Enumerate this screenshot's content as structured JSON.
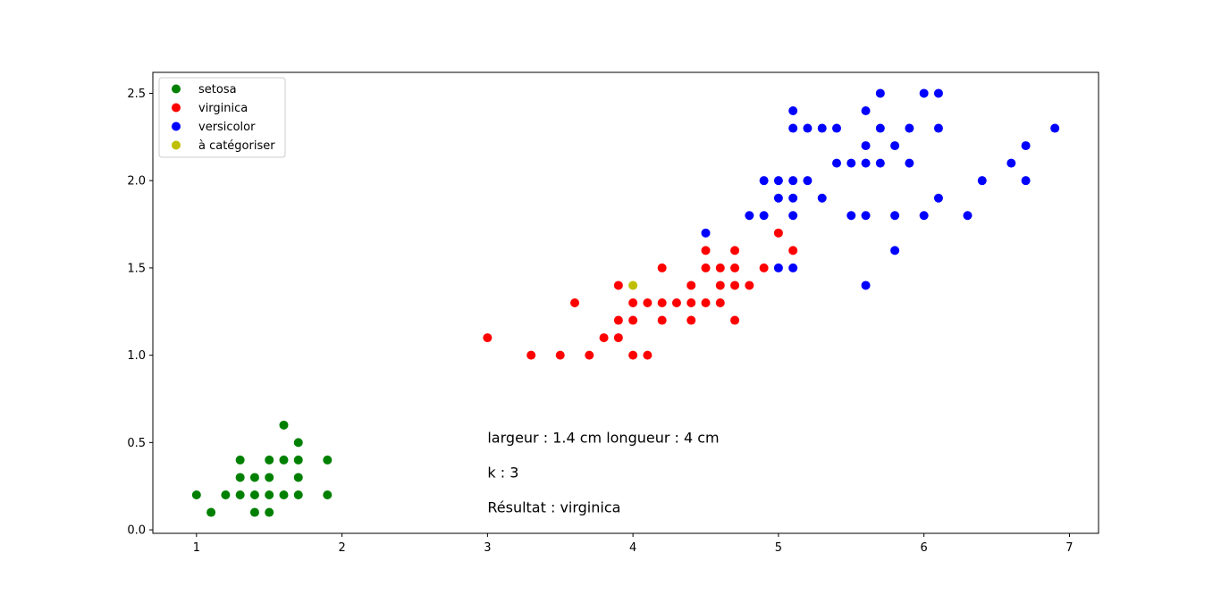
{
  "colors": {
    "setosa": "#008000",
    "virginica": "#ff0000",
    "versicolor": "#0000ff",
    "query": "#bfbf00"
  },
  "chart_data": {
    "type": "scatter",
    "xlim": [
      0.7,
      7.2
    ],
    "ylim": [
      -0.02,
      2.62
    ],
    "xticks": [
      1,
      2,
      3,
      4,
      5,
      6,
      7
    ],
    "yticks": [
      0.0,
      0.5,
      1.0,
      1.5,
      2.0,
      2.5
    ],
    "xtick_labels": [
      "1",
      "2",
      "3",
      "4",
      "5",
      "6",
      "7"
    ],
    "ytick_labels": [
      "0.0",
      "0.5",
      "1.0",
      "1.5",
      "2.0",
      "2.5"
    ],
    "grid": false,
    "legend_position": "top-left",
    "series": [
      {
        "name": "setosa",
        "color": "#008000",
        "points": [
          [
            1.0,
            0.2
          ],
          [
            1.1,
            0.1
          ],
          [
            1.2,
            0.2
          ],
          [
            1.3,
            0.2
          ],
          [
            1.3,
            0.3
          ],
          [
            1.3,
            0.4
          ],
          [
            1.4,
            0.1
          ],
          [
            1.4,
            0.2
          ],
          [
            1.4,
            0.3
          ],
          [
            1.5,
            0.1
          ],
          [
            1.5,
            0.2
          ],
          [
            1.5,
            0.3
          ],
          [
            1.5,
            0.4
          ],
          [
            1.6,
            0.2
          ],
          [
            1.6,
            0.4
          ],
          [
            1.6,
            0.6
          ],
          [
            1.7,
            0.2
          ],
          [
            1.7,
            0.3
          ],
          [
            1.7,
            0.4
          ],
          [
            1.7,
            0.5
          ],
          [
            1.9,
            0.2
          ],
          [
            1.9,
            0.4
          ]
        ]
      },
      {
        "name": "virginica",
        "color": "#ff0000",
        "points": [
          [
            3.0,
            1.1
          ],
          [
            3.3,
            1.0
          ],
          [
            3.5,
            1.0
          ],
          [
            3.6,
            1.3
          ],
          [
            3.7,
            1.0
          ],
          [
            3.8,
            1.1
          ],
          [
            3.9,
            1.1
          ],
          [
            3.9,
            1.2
          ],
          [
            3.9,
            1.4
          ],
          [
            4.0,
            1.0
          ],
          [
            4.0,
            1.2
          ],
          [
            4.0,
            1.3
          ],
          [
            4.1,
            1.0
          ],
          [
            4.1,
            1.3
          ],
          [
            4.2,
            1.2
          ],
          [
            4.2,
            1.3
          ],
          [
            4.2,
            1.5
          ],
          [
            4.3,
            1.3
          ],
          [
            4.4,
            1.2
          ],
          [
            4.4,
            1.3
          ],
          [
            4.4,
            1.4
          ],
          [
            4.5,
            1.3
          ],
          [
            4.5,
            1.5
          ],
          [
            4.5,
            1.6
          ],
          [
            4.6,
            1.3
          ],
          [
            4.6,
            1.4
          ],
          [
            4.6,
            1.5
          ],
          [
            4.7,
            1.2
          ],
          [
            4.7,
            1.4
          ],
          [
            4.7,
            1.5
          ],
          [
            4.7,
            1.6
          ],
          [
            4.8,
            1.4
          ],
          [
            4.9,
            1.5
          ],
          [
            5.0,
            1.7
          ],
          [
            5.1,
            1.6
          ]
        ]
      },
      {
        "name": "versicolor",
        "color": "#0000ff",
        "points": [
          [
            4.5,
            1.7
          ],
          [
            4.8,
            1.8
          ],
          [
            4.9,
            1.8
          ],
          [
            4.9,
            2.0
          ],
          [
            5.0,
            1.5
          ],
          [
            5.0,
            1.9
          ],
          [
            5.0,
            2.0
          ],
          [
            5.1,
            1.5
          ],
          [
            5.1,
            1.8
          ],
          [
            5.1,
            1.9
          ],
          [
            5.1,
            2.0
          ],
          [
            5.1,
            2.3
          ],
          [
            5.1,
            2.4
          ],
          [
            5.2,
            2.0
          ],
          [
            5.2,
            2.3
          ],
          [
            5.3,
            1.9
          ],
          [
            5.3,
            2.3
          ],
          [
            5.4,
            2.1
          ],
          [
            5.4,
            2.3
          ],
          [
            5.5,
            1.8
          ],
          [
            5.5,
            2.1
          ],
          [
            5.6,
            1.4
          ],
          [
            5.6,
            1.8
          ],
          [
            5.6,
            2.1
          ],
          [
            5.6,
            2.2
          ],
          [
            5.6,
            2.4
          ],
          [
            5.7,
            2.1
          ],
          [
            5.7,
            2.3
          ],
          [
            5.7,
            2.5
          ],
          [
            5.8,
            1.6
          ],
          [
            5.8,
            1.8
          ],
          [
            5.8,
            2.2
          ],
          [
            5.9,
            2.1
          ],
          [
            5.9,
            2.3
          ],
          [
            6.0,
            1.8
          ],
          [
            6.0,
            2.5
          ],
          [
            6.1,
            1.9
          ],
          [
            6.1,
            2.3
          ],
          [
            6.1,
            2.5
          ],
          [
            6.3,
            1.8
          ],
          [
            6.4,
            2.0
          ],
          [
            6.6,
            2.1
          ],
          [
            6.7,
            2.0
          ],
          [
            6.7,
            2.2
          ],
          [
            6.9,
            2.3
          ]
        ]
      },
      {
        "name": "à catégoriser",
        "color": "#bfbf00",
        "points": [
          [
            4.0,
            1.4
          ]
        ]
      }
    ],
    "annotations": [
      {
        "text": "largeur : 1.4 cm longueur : 4 cm",
        "x": 3.0,
        "y": 0.5
      },
      {
        "text": "k : 3",
        "x": 3.0,
        "y": 0.3
      },
      {
        "text": "Résultat : virginica",
        "x": 3.0,
        "y": 0.1
      }
    ]
  }
}
